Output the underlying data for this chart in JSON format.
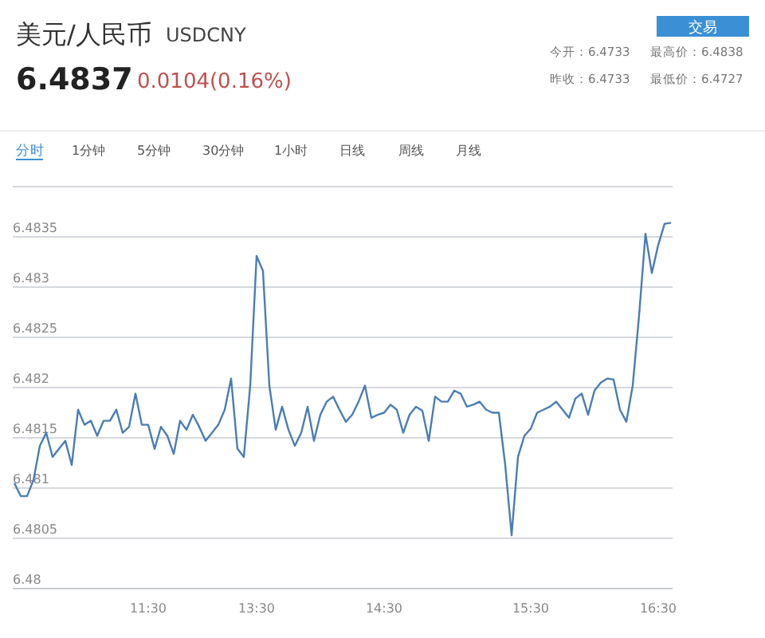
{
  "chart_data": {
    "type": "line",
    "title": "美元/人民币",
    "subtitle": "USDCNY",
    "annotations": [
      "6.4837",
      "0.0104(0.16%)",
      "交易",
      "今开：6.4733",
      "最高价：6.4838",
      "昨收：6.4733",
      "最低价：6.4727",
      "分时",
      "1分钟",
      "5分钟",
      "30分钟",
      "1小时",
      "日线",
      "周线",
      "月线"
    ],
    "categories": [
      null,
      null,
      null,
      null,
      null,
      null,
      null,
      null,
      null,
      null,
      null,
      null,
      null,
      null,
      null,
      null,
      null,
      null,
      null,
      null,
      null,
      "11:30",
      null,
      null,
      null,
      null,
      null,
      null,
      null,
      null,
      null,
      null,
      null,
      null,
      null,
      null,
      null,
      null,
      "13:30",
      null,
      null,
      null,
      null,
      null,
      null,
      null,
      null,
      null,
      null,
      null,
      null,
      null,
      null,
      null,
      null,
      null,
      null,
      null,
      "14:30",
      null,
      null,
      null,
      null,
      null,
      null,
      null,
      null,
      null,
      null,
      null,
      null,
      null,
      null,
      null,
      null,
      null,
      null,
      null,
      null,
      null,
      null,
      "15:30",
      null,
      null,
      null,
      null,
      null,
      null,
      null,
      null,
      null,
      null,
      null,
      null,
      null,
      null,
      null,
      null,
      null,
      null,
      null,
      "16:30",
      null,
      null
    ],
    "series": [
      {
        "color": "#4a7db5",
        "values": [
          6.48105,
          6.48092,
          6.48092,
          6.48108,
          6.48142,
          6.48155,
          6.48131,
          6.48139,
          6.48147,
          6.48123,
          6.48178,
          6.48163,
          6.48167,
          6.48152,
          6.48167,
          6.48167,
          6.48178,
          6.48155,
          6.48161,
          6.48194,
          6.48163,
          6.48163,
          6.48139,
          6.48161,
          6.48152,
          6.48134,
          6.48167,
          6.48158,
          6.48173,
          6.48161,
          6.48147,
          6.48155,
          6.48163,
          6.48178,
          6.48209,
          6.48139,
          6.48131,
          6.48202,
          6.48331,
          6.48316,
          6.48202,
          6.48158,
          6.48181,
          6.48158,
          6.48142,
          6.48155,
          6.48181,
          6.48147,
          6.48173,
          6.48186,
          6.48191,
          6.48178,
          6.48166,
          6.48173,
          6.48186,
          6.48202,
          6.4817,
          6.48173,
          6.48175,
          6.48183,
          6.48178,
          6.48155,
          6.48173,
          6.48181,
          6.48177,
          6.48147,
          6.48191,
          6.48186,
          6.48186,
          6.48197,
          6.48194,
          6.48181,
          6.48183,
          6.48186,
          6.48178,
          6.48175,
          6.48175,
          6.48123,
          6.48053,
          6.48131,
          6.48152,
          6.48159,
          6.48175,
          6.48178,
          6.48181,
          6.48186,
          6.48178,
          6.4817,
          6.48189,
          6.48194,
          6.48173,
          6.48197,
          6.48205,
          6.48209,
          6.48208,
          6.48178,
          6.48166,
          6.48202,
          6.48272,
          6.48353,
          6.48314,
          6.48342,
          6.48363,
          6.48364
        ]
      }
    ],
    "ylim": [
      6.48,
      6.484
    ],
    "yticks": [
      6.48,
      6.4805,
      6.481,
      6.4815,
      6.482,
      6.4825,
      6.483,
      6.4835
    ],
    "grid": "y",
    "marker": "none",
    "line_style": "solid"
  }
}
